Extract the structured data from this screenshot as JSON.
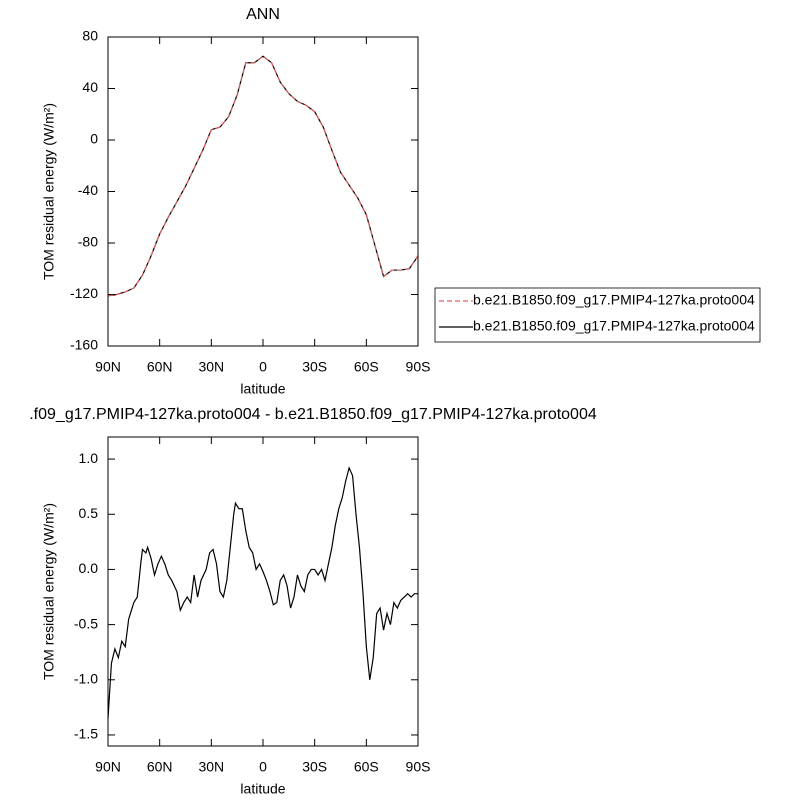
{
  "chart_data": [
    {
      "type": "line",
      "title": "ANN",
      "xlabel": "latitude",
      "ylabel": "TOM residual energy (W/m²)",
      "x": [
        90,
        85,
        80,
        75,
        70,
        65,
        60,
        55,
        50,
        45,
        40,
        35,
        30,
        25,
        20,
        15,
        10,
        5,
        0,
        -5,
        -10,
        -15,
        -20,
        -25,
        -30,
        -35,
        -40,
        -45,
        -50,
        -55,
        -60,
        -65,
        -70,
        -75,
        -80,
        -85,
        -90
      ],
      "series": [
        {
          "name": "b.e21.B1850.f09_g17.PMIP4-127ka.proto004",
          "color": "#e06060",
          "dash": true,
          "values": [
            -121,
            -120,
            -118,
            -115,
            -105,
            -90,
            -73,
            -60,
            -48,
            -36,
            -22,
            -8,
            8,
            10,
            18,
            35,
            60,
            60,
            65,
            60,
            45,
            36,
            30,
            27,
            22,
            10,
            -8,
            -25,
            -35,
            -45,
            -58,
            -82,
            -106,
            -101,
            -101,
            -100,
            -90
          ]
        },
        {
          "name": "b.e21.B1850.f09_g17.PMIP4-127ka.proto004",
          "color": "#000000",
          "dash": false,
          "values": [
            -121,
            -120,
            -118,
            -115,
            -105,
            -90,
            -73,
            -60,
            -48,
            -36,
            -22,
            -8,
            8,
            10,
            18,
            35,
            60,
            60,
            65,
            60,
            45,
            36,
            30,
            27,
            22,
            10,
            -8,
            -25,
            -35,
            -45,
            -58,
            -82,
            -106,
            -101,
            -101,
            -100,
            -90
          ]
        }
      ],
      "xlim": [
        90,
        -90
      ],
      "xticks": [
        {
          "value": 90,
          "label": "90N"
        },
        {
          "value": 60,
          "label": "60N"
        },
        {
          "value": 30,
          "label": "30N"
        },
        0,
        {
          "value": -30,
          "label": "30S"
        },
        {
          "value": -60,
          "label": "60S"
        },
        {
          "value": -90,
          "label": "90S"
        }
      ],
      "ylim": [
        -160,
        80
      ],
      "yticks": [
        -160,
        -120,
        -80,
        -40,
        0,
        40,
        80
      ],
      "legend": "right"
    },
    {
      "type": "line",
      "title": ".f09_g17.PMIP4-127ka.proto004 - b.e21.B1850.f09_g17.PMIP4-127ka.proto004",
      "xlabel": "latitude",
      "ylabel": "TOM residual energy (W/m²)",
      "x": [
        90,
        88,
        86,
        84,
        82,
        80,
        78,
        75,
        73,
        71,
        70,
        68,
        67,
        65,
        63,
        61,
        59,
        57,
        55,
        53,
        50,
        48,
        46,
        44,
        42,
        40,
        38,
        36,
        33,
        31,
        29,
        27,
        25,
        23,
        21,
        19,
        17,
        16,
        14,
        12,
        10,
        8,
        6,
        4,
        2,
        0,
        -2,
        -4,
        -6,
        -8,
        -10,
        -12,
        -14,
        -16,
        -18,
        -20,
        -22,
        -24,
        -26,
        -28,
        -30,
        -32,
        -34,
        -36,
        -38,
        -40,
        -42,
        -44,
        -46,
        -48,
        -50,
        -52,
        -54,
        -56,
        -58,
        -60,
        -62,
        -64,
        -66,
        -68,
        -70,
        -72,
        -74,
        -76,
        -78,
        -80,
        -82,
        -84,
        -86,
        -88,
        -90
      ],
      "values": [
        -1.35,
        -0.85,
        -0.72,
        -0.8,
        -0.65,
        -0.7,
        -0.45,
        -0.3,
        -0.25,
        0.05,
        0.18,
        0.15,
        0.2,
        0.1,
        -0.05,
        0.05,
        0.12,
        0.05,
        -0.05,
        -0.1,
        -0.2,
        -0.37,
        -0.3,
        -0.25,
        -0.3,
        -0.05,
        -0.25,
        -0.1,
        0.0,
        0.15,
        0.18,
        0.05,
        -0.2,
        -0.25,
        -0.1,
        0.2,
        0.5,
        0.6,
        0.55,
        0.55,
        0.35,
        0.2,
        0.15,
        0.0,
        0.05,
        -0.02,
        -0.1,
        -0.2,
        -0.32,
        -0.3,
        -0.1,
        -0.05,
        -0.15,
        -0.35,
        -0.25,
        -0.05,
        -0.15,
        -0.2,
        -0.05,
        0.0,
        0.0,
        -0.05,
        0.0,
        -0.1,
        0.05,
        0.2,
        0.4,
        0.55,
        0.65,
        0.8,
        0.92,
        0.85,
        0.5,
        0.2,
        -0.2,
        -0.7,
        -1.0,
        -0.8,
        -0.4,
        -0.35,
        -0.55,
        -0.4,
        -0.5,
        -0.3,
        -0.35,
        -0.28,
        -0.25,
        -0.22,
        -0.25,
        -0.22,
        -0.22
      ],
      "color": "#000000",
      "xlim": [
        90,
        -90
      ],
      "xticks": [
        {
          "value": 90,
          "label": "90N"
        },
        {
          "value": 60,
          "label": "60N"
        },
        {
          "value": 30,
          "label": "30N"
        },
        0,
        {
          "value": -30,
          "label": "30S"
        },
        {
          "value": -60,
          "label": "60S"
        },
        {
          "value": -90,
          "label": "90S"
        }
      ],
      "ylim": [
        -1.6,
        1.2
      ],
      "yticks": [
        -1.5,
        -1.0,
        -0.5,
        0.0,
        0.5,
        1.0
      ],
      "yticklabels": [
        "-1.5",
        "-1.0",
        "-0.5",
        "0.0",
        "0.5",
        "1.0"
      ]
    }
  ]
}
